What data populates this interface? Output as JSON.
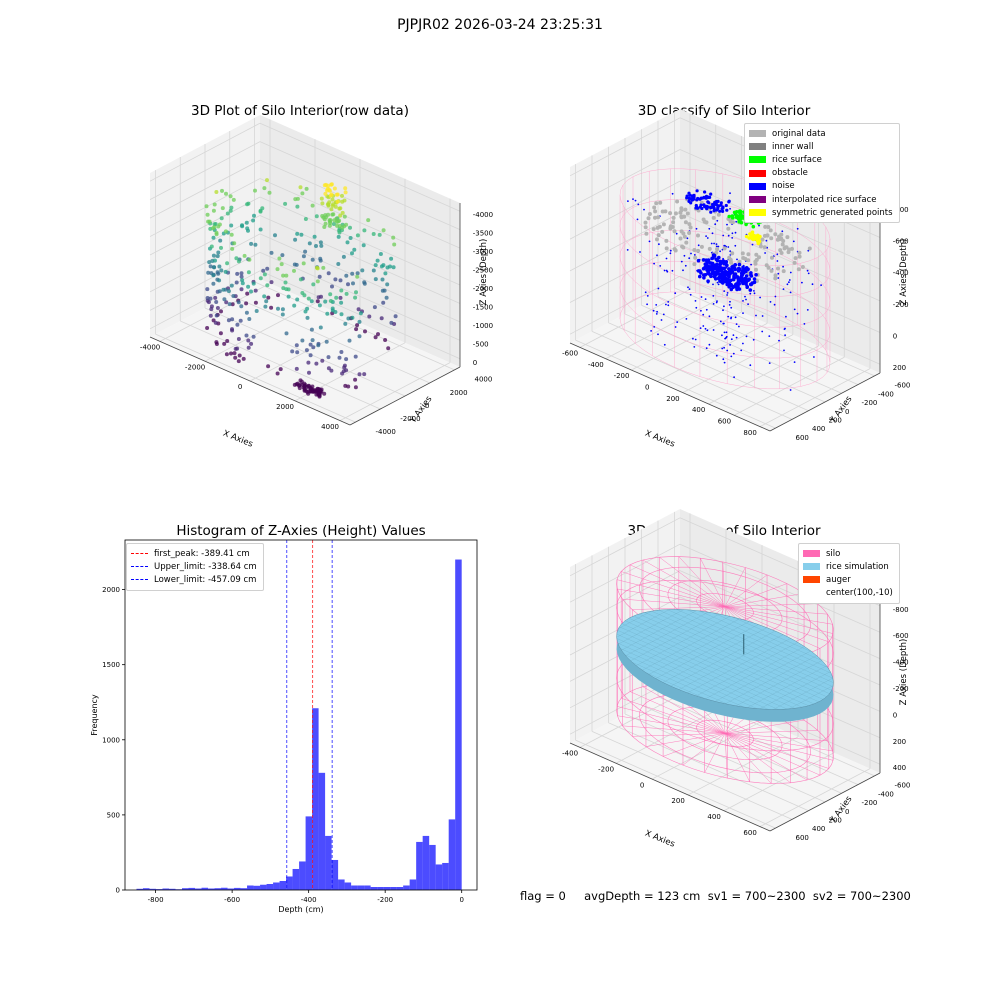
{
  "suptitle": "PJPJR02 2026-03-24 23:25:31",
  "status_line": "flag = 0     avgDepth = 123 cm  sv1 = 700~2300  sv2 = 700~2300",
  "panels": {
    "raw": {
      "title": "3D Plot of Silo Interior(row data)",
      "xlabel": "X Axies",
      "ylabel": "Y Axies",
      "zlabel": "Z Axies (Depth)",
      "xticks": [
        "-4000",
        "-2000",
        "0",
        "2000",
        "4000"
      ],
      "yticks": [
        "-4000",
        "-2000",
        "0",
        "2000",
        "4000"
      ],
      "zticks": [
        "0",
        "-500",
        "-1000",
        "-1500",
        "-2000",
        "-2500",
        "-3000",
        "-3500",
        "-4000"
      ]
    },
    "classify": {
      "title": "3D classify of Silo Interior",
      "xlabel": "X Axies",
      "ylabel": "Y Axies",
      "zlabel": "Z Axies (Depth)",
      "xticks": [
        "-600",
        "-400",
        "-200",
        "0",
        "200",
        "400",
        "600",
        "800"
      ],
      "yticks": [
        "600",
        "400",
        "200",
        "0",
        "-200",
        "-400",
        "-600"
      ],
      "zticks": [
        "200",
        "0",
        "-200",
        "-400",
        "-600",
        "-800"
      ],
      "legend": [
        {
          "label": "original data",
          "color": "#b3b3b3"
        },
        {
          "label": "inner wall",
          "color": "#808080"
        },
        {
          "label": "rice surface",
          "color": "#00ff00"
        },
        {
          "label": "obstacle",
          "color": "#ff0000"
        },
        {
          "label": "noise",
          "color": "#0000ff"
        },
        {
          "label": "interpolated rice surface",
          "color": "#800080"
        },
        {
          "label": "symmetric generated points",
          "color": "#ffff00"
        }
      ]
    },
    "simulation": {
      "title": "3D simulation of Silo Interior",
      "xlabel": "X Axies",
      "ylabel": "Y Axies",
      "zlabel": "Z Axies (Depth)",
      "xticks": [
        "-400",
        "-200",
        "0",
        "200",
        "400",
        "600"
      ],
      "yticks": [
        "600",
        "400",
        "200",
        "0",
        "-200",
        "-400",
        "-600"
      ],
      "zticks": [
        "400",
        "200",
        "0",
        "-200",
        "-400",
        "-600",
        "-800"
      ],
      "legend": [
        {
          "label": "silo",
          "color": "#ff69b4"
        },
        {
          "label": "rice simulation",
          "color": "#87ceeb"
        },
        {
          "label": "auger",
          "color": "#ff4500"
        },
        {
          "label": "center(100,-10)",
          "color": ""
        }
      ]
    }
  },
  "chart_data": {
    "type": "bar",
    "title": "Histogram of Z-Axies (Height) Values",
    "xlabel": "Depth (cm)",
    "ylabel": "Frequency",
    "xlim": [
      -880,
      40
    ],
    "ylim": [
      0,
      2330
    ],
    "xticks": [
      -800,
      -600,
      -400,
      -200,
      0
    ],
    "yticks": [
      0,
      500,
      1000,
      1500,
      2000
    ],
    "bin_start": -850,
    "bin_width": 17,
    "values": [
      8,
      12,
      8,
      6,
      10,
      8,
      5,
      12,
      14,
      10,
      15,
      10,
      12,
      15,
      10,
      14,
      12,
      30,
      28,
      35,
      40,
      50,
      60,
      90,
      140,
      190,
      490,
      1210,
      780,
      360,
      200,
      70,
      50,
      30,
      30,
      30,
      20,
      20,
      20,
      20,
      20,
      30,
      70,
      320,
      360,
      300,
      170,
      180,
      470,
      2200
    ],
    "bar_color": "#0000ff",
    "vlines": [
      {
        "label": "first_peak: -389.41 cm",
        "x": -389.41,
        "color": "#ff0000"
      },
      {
        "label": "Upper_limit: -338.64 cm",
        "x": -338.64,
        "color": "#0000ff"
      },
      {
        "label": "Lower_limit: -457.09 cm",
        "x": -457.09,
        "color": "#0000ff"
      }
    ],
    "legend_position": "upper-left"
  }
}
